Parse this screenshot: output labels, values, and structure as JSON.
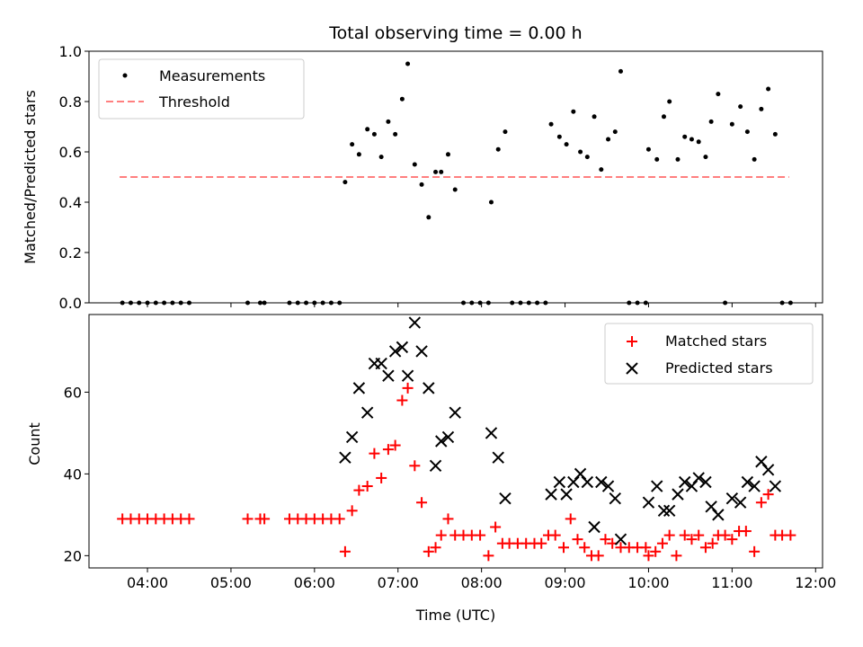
{
  "chart_data": [
    {
      "type": "scatter",
      "title": "Total observing time = 0.00 h",
      "xlabel": "",
      "ylabel": "Matched/Predicted stars",
      "ylim": [
        0,
        1.0
      ],
      "xlim": [
        "03:18",
        "12:05"
      ],
      "yticks": [
        "0.0",
        "0.2",
        "0.4",
        "0.6",
        "0.8",
        "1.0"
      ],
      "xticks": [
        "04:00",
        "05:00",
        "06:00",
        "07:00",
        "08:00",
        "09:00",
        "10:00",
        "11:00",
        "12:00"
      ],
      "show_x_tick_labels": false,
      "grid": false,
      "legend_position": "top-left",
      "series": [
        {
          "name": "Measurements",
          "kind": "scatter",
          "marker": "dot",
          "color": "#000000",
          "points": [
            [
              "03:42",
              0
            ],
            [
              "03:48",
              0
            ],
            [
              "03:54",
              0
            ],
            [
              "04:00",
              0
            ],
            [
              "04:06",
              0
            ],
            [
              "04:12",
              0
            ],
            [
              "04:18",
              0
            ],
            [
              "04:24",
              0
            ],
            [
              "04:30",
              0
            ],
            [
              "05:12",
              0
            ],
            [
              "05:21",
              0
            ],
            [
              "05:24",
              0
            ],
            [
              "05:42",
              0
            ],
            [
              "05:48",
              0
            ],
            [
              "05:54",
              0
            ],
            [
              "06:00",
              0
            ],
            [
              "06:06",
              0
            ],
            [
              "06:12",
              0
            ],
            [
              "06:18",
              0
            ],
            [
              "06:22",
              0.48
            ],
            [
              "06:27",
              0.63
            ],
            [
              "06:32",
              0.59
            ],
            [
              "06:38",
              0.69
            ],
            [
              "06:43",
              0.67
            ],
            [
              "06:48",
              0.58
            ],
            [
              "06:53",
              0.72
            ],
            [
              "06:58",
              0.67
            ],
            [
              "07:03",
              0.81
            ],
            [
              "07:07",
              0.95
            ],
            [
              "07:12",
              0.55
            ],
            [
              "07:17",
              0.47
            ],
            [
              "07:22",
              0.34
            ],
            [
              "07:27",
              0.52
            ],
            [
              "07:31",
              0.52
            ],
            [
              "07:36",
              0.59
            ],
            [
              "07:41",
              0.45
            ],
            [
              "07:47",
              0
            ],
            [
              "07:53",
              0
            ],
            [
              "07:59",
              0
            ],
            [
              "08:05",
              0
            ],
            [
              "08:07",
              0.4
            ],
            [
              "08:12",
              0.61
            ],
            [
              "08:17",
              0.68
            ],
            [
              "08:22",
              0
            ],
            [
              "08:28",
              0
            ],
            [
              "08:34",
              0
            ],
            [
              "08:40",
              0
            ],
            [
              "08:46",
              0
            ],
            [
              "08:50",
              0.71
            ],
            [
              "08:56",
              0.66
            ],
            [
              "09:01",
              0.63
            ],
            [
              "09:06",
              0.76
            ],
            [
              "09:11",
              0.6
            ],
            [
              "09:16",
              0.58
            ],
            [
              "09:21",
              0.74
            ],
            [
              "09:26",
              0.53
            ],
            [
              "09:31",
              0.65
            ],
            [
              "09:36",
              0.68
            ],
            [
              "09:40",
              0.92
            ],
            [
              "09:46",
              0
            ],
            [
              "09:52",
              0
            ],
            [
              "09:58",
              0
            ],
            [
              "10:00",
              0.61
            ],
            [
              "10:06",
              0.57
            ],
            [
              "10:11",
              0.74
            ],
            [
              "10:15",
              0.8
            ],
            [
              "10:21",
              0.57
            ],
            [
              "10:26",
              0.66
            ],
            [
              "10:31",
              0.65
            ],
            [
              "10:36",
              0.64
            ],
            [
              "10:41",
              0.58
            ],
            [
              "10:45",
              0.72
            ],
            [
              "10:50",
              0.83
            ],
            [
              "10:55",
              0
            ],
            [
              "11:00",
              0.71
            ],
            [
              "11:06",
              0.78
            ],
            [
              "11:11",
              0.68
            ],
            [
              "11:16",
              0.57
            ],
            [
              "11:21",
              0.77
            ],
            [
              "11:26",
              0.85
            ],
            [
              "11:31",
              0.67
            ],
            [
              "11:36",
              0
            ],
            [
              "11:42",
              0
            ]
          ]
        },
        {
          "name": "Threshold",
          "kind": "line",
          "style": "dashed",
          "color": "#ff7f7f",
          "points": [
            [
              "03:40",
              0.5
            ],
            [
              "11:41",
              0.5
            ]
          ]
        }
      ]
    },
    {
      "type": "scatter",
      "title": "",
      "xlabel": "Time (UTC)",
      "ylabel": "Count",
      "ylim": [
        17,
        79
      ],
      "xlim": [
        "03:18",
        "12:05"
      ],
      "yticks": [
        "20",
        "40",
        "60"
      ],
      "xticks": [
        "04:00",
        "05:00",
        "06:00",
        "07:00",
        "08:00",
        "09:00",
        "10:00",
        "11:00",
        "12:00"
      ],
      "show_x_tick_labels": true,
      "grid": false,
      "legend_position": "top-right",
      "series": [
        {
          "name": "Matched stars",
          "kind": "scatter",
          "marker": "plus",
          "color": "#ff0000",
          "points": [
            [
              "03:42",
              29
            ],
            [
              "03:48",
              29
            ],
            [
              "03:54",
              29
            ],
            [
              "04:00",
              29
            ],
            [
              "04:06",
              29
            ],
            [
              "04:12",
              29
            ],
            [
              "04:18",
              29
            ],
            [
              "04:24",
              29
            ],
            [
              "04:30",
              29
            ],
            [
              "05:12",
              29
            ],
            [
              "05:21",
              29
            ],
            [
              "05:24",
              29
            ],
            [
              "05:42",
              29
            ],
            [
              "05:48",
              29
            ],
            [
              "05:54",
              29
            ],
            [
              "06:00",
              29
            ],
            [
              "06:06",
              29
            ],
            [
              "06:12",
              29
            ],
            [
              "06:18",
              29
            ],
            [
              "06:22",
              21
            ],
            [
              "06:27",
              31
            ],
            [
              "06:32",
              36
            ],
            [
              "06:38",
              37
            ],
            [
              "06:43",
              45
            ],
            [
              "06:48",
              39
            ],
            [
              "06:53",
              46
            ],
            [
              "06:58",
              47
            ],
            [
              "07:03",
              58
            ],
            [
              "07:07",
              61
            ],
            [
              "07:12",
              42
            ],
            [
              "07:17",
              33
            ],
            [
              "07:22",
              21
            ],
            [
              "07:27",
              22
            ],
            [
              "07:31",
              25
            ],
            [
              "07:36",
              29
            ],
            [
              "07:41",
              25
            ],
            [
              "07:47",
              25
            ],
            [
              "07:53",
              25
            ],
            [
              "07:59",
              25
            ],
            [
              "08:05",
              20
            ],
            [
              "08:10",
              27
            ],
            [
              "08:15",
              23
            ],
            [
              "08:20",
              23
            ],
            [
              "08:26",
              23
            ],
            [
              "08:32",
              23
            ],
            [
              "08:38",
              23
            ],
            [
              "08:43",
              23
            ],
            [
              "08:48",
              25
            ],
            [
              "08:53",
              25
            ],
            [
              "08:59",
              22
            ],
            [
              "09:04",
              29
            ],
            [
              "09:09",
              24
            ],
            [
              "09:14",
              22
            ],
            [
              "09:19",
              20
            ],
            [
              "09:24",
              20
            ],
            [
              "09:29",
              24
            ],
            [
              "09:34",
              23
            ],
            [
              "09:40",
              22
            ],
            [
              "09:46",
              22
            ],
            [
              "09:52",
              22
            ],
            [
              "09:58",
              22
            ],
            [
              "10:00",
              20
            ],
            [
              "10:05",
              21
            ],
            [
              "10:10",
              23
            ],
            [
              "10:15",
              25
            ],
            [
              "10:20",
              20
            ],
            [
              "10:26",
              25
            ],
            [
              "10:31",
              24
            ],
            [
              "10:36",
              25
            ],
            [
              "10:41",
              22
            ],
            [
              "10:46",
              23
            ],
            [
              "10:50",
              25
            ],
            [
              "10:55",
              25
            ],
            [
              "11:00",
              24
            ],
            [
              "11:05",
              26
            ],
            [
              "11:10",
              26
            ],
            [
              "11:16",
              21
            ],
            [
              "11:21",
              33
            ],
            [
              "11:26",
              35
            ],
            [
              "11:31",
              25
            ],
            [
              "11:36",
              25
            ],
            [
              "11:42",
              25
            ]
          ]
        },
        {
          "name": "Predicted stars",
          "kind": "scatter",
          "marker": "x",
          "color": "#000000",
          "points": [
            [
              "06:22",
              44
            ],
            [
              "06:27",
              49
            ],
            [
              "06:32",
              61
            ],
            [
              "06:38",
              55
            ],
            [
              "06:43",
              67
            ],
            [
              "06:48",
              67
            ],
            [
              "06:53",
              64
            ],
            [
              "06:58",
              70
            ],
            [
              "07:03",
              71
            ],
            [
              "07:07",
              64
            ],
            [
              "07:12",
              77
            ],
            [
              "07:17",
              70
            ],
            [
              "07:22",
              61
            ],
            [
              "07:27",
              42
            ],
            [
              "07:31",
              48
            ],
            [
              "07:36",
              49
            ],
            [
              "07:41",
              55
            ],
            [
              "08:07",
              50
            ],
            [
              "08:12",
              44
            ],
            [
              "08:17",
              34
            ],
            [
              "08:50",
              35
            ],
            [
              "08:56",
              38
            ],
            [
              "09:01",
              35
            ],
            [
              "09:06",
              38
            ],
            [
              "09:11",
              40
            ],
            [
              "09:16",
              38
            ],
            [
              "09:21",
              27
            ],
            [
              "09:26",
              38
            ],
            [
              "09:31",
              37
            ],
            [
              "09:36",
              34
            ],
            [
              "09:40",
              24
            ],
            [
              "10:00",
              33
            ],
            [
              "10:06",
              37
            ],
            [
              "10:11",
              31
            ],
            [
              "10:15",
              31
            ],
            [
              "10:21",
              35
            ],
            [
              "10:26",
              38
            ],
            [
              "10:31",
              37
            ],
            [
              "10:36",
              39
            ],
            [
              "10:41",
              38
            ],
            [
              "10:45",
              32
            ],
            [
              "10:50",
              30
            ],
            [
              "11:00",
              34
            ],
            [
              "11:06",
              33
            ],
            [
              "11:11",
              38
            ],
            [
              "11:16",
              37
            ],
            [
              "11:21",
              43
            ],
            [
              "11:26",
              41
            ],
            [
              "11:31",
              37
            ]
          ]
        }
      ]
    }
  ]
}
